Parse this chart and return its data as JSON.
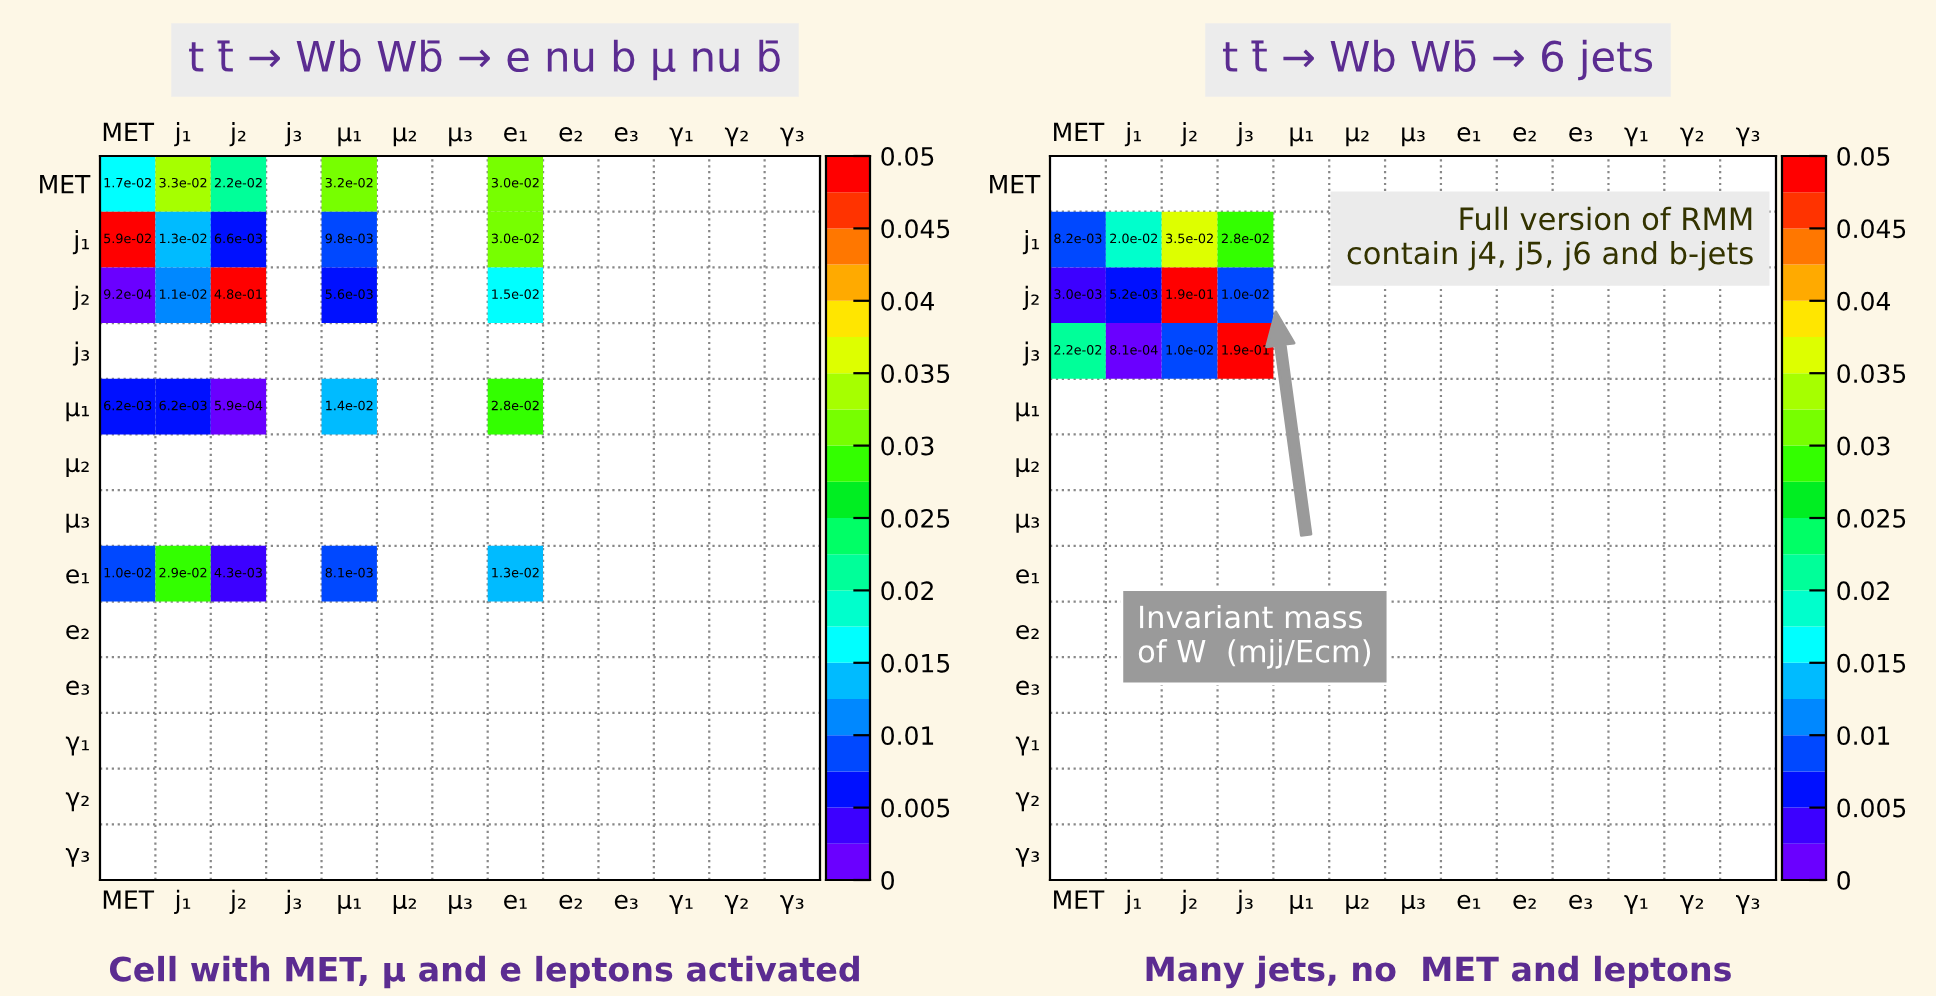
{
  "chart_data": [
    {
      "type": "heatmap",
      "title": "t t̄ → Wb Wb̄ → e nu b μ nu b̄",
      "categories": [
        "MET",
        "j₁",
        "j₂",
        "j₃",
        "μ₁",
        "μ₂",
        "μ₃",
        "e₁",
        "e₂",
        "e₃",
        "γ₁",
        "γ₂",
        "γ₃"
      ],
      "y_categories": [
        "MET",
        "j₁",
        "j₂",
        "j₃",
        "μ₁",
        "μ₂",
        "μ₃",
        "e₁",
        "e₂",
        "e₃",
        "γ₁",
        "γ₂",
        "γ₃"
      ],
      "cells": [
        [
          0.017,
          0.033,
          0.022,
          null,
          0.032,
          null,
          null,
          0.03,
          null,
          null,
          null,
          null,
          null
        ],
        [
          0.059,
          0.013,
          0.0066,
          null,
          0.0098,
          null,
          null,
          0.03,
          null,
          null,
          null,
          null,
          null
        ],
        [
          0.00092,
          0.011,
          0.48,
          null,
          0.0056,
          null,
          null,
          0.015,
          null,
          null,
          null,
          null,
          null
        ],
        [
          null,
          null,
          null,
          null,
          null,
          null,
          null,
          null,
          null,
          null,
          null,
          null,
          null
        ],
        [
          0.0062,
          0.0062,
          0.00059,
          null,
          0.014,
          null,
          null,
          0.028,
          null,
          null,
          null,
          null,
          null
        ],
        [
          null,
          null,
          null,
          null,
          null,
          null,
          null,
          null,
          null,
          null,
          null,
          null,
          null
        ],
        [
          null,
          null,
          null,
          null,
          null,
          null,
          null,
          null,
          null,
          null,
          null,
          null,
          null
        ],
        [
          0.01,
          0.029,
          0.0043,
          null,
          0.0081,
          null,
          null,
          0.013,
          null,
          null,
          null,
          null,
          null
        ],
        [
          null,
          null,
          null,
          null,
          null,
          null,
          null,
          null,
          null,
          null,
          null,
          null,
          null
        ],
        [
          null,
          null,
          null,
          null,
          null,
          null,
          null,
          null,
          null,
          null,
          null,
          null,
          null
        ],
        [
          null,
          null,
          null,
          null,
          null,
          null,
          null,
          null,
          null,
          null,
          null,
          null,
          null
        ],
        [
          null,
          null,
          null,
          null,
          null,
          null,
          null,
          null,
          null,
          null,
          null,
          null,
          null
        ],
        [
          null,
          null,
          null,
          null,
          null,
          null,
          null,
          null,
          null,
          null,
          null,
          null,
          null
        ]
      ],
      "cell_labels": [
        [
          "1.7e-02",
          "3.3e-02",
          "2.2e-02",
          null,
          "3.2e-02",
          null,
          null,
          "3.0e-02",
          null,
          null,
          null,
          null,
          null
        ],
        [
          "5.9e-02",
          "1.3e-02",
          "6.6e-03",
          null,
          "9.8e-03",
          null,
          null,
          "3.0e-02",
          null,
          null,
          null,
          null,
          null
        ],
        [
          "9.2e-04",
          "1.1e-02",
          "4.8e-01",
          null,
          "5.6e-03",
          null,
          null,
          "1.5e-02",
          null,
          null,
          null,
          null,
          null
        ],
        [
          null,
          null,
          null,
          null,
          null,
          null,
          null,
          null,
          null,
          null,
          null,
          null,
          null
        ],
        [
          "6.2e-03",
          "6.2e-03",
          "5.9e-04",
          null,
          "1.4e-02",
          null,
          null,
          "2.8e-02",
          null,
          null,
          null,
          null,
          null
        ],
        [
          null,
          null,
          null,
          null,
          null,
          null,
          null,
          null,
          null,
          null,
          null,
          null,
          null
        ],
        [
          null,
          null,
          null,
          null,
          null,
          null,
          null,
          null,
          null,
          null,
          null,
          null,
          null
        ],
        [
          "1.0e-02",
          "2.9e-02",
          "4.3e-03",
          null,
          "8.1e-03",
          null,
          null,
          "1.3e-02",
          null,
          null,
          null,
          null,
          null
        ],
        [
          null,
          null,
          null,
          null,
          null,
          null,
          null,
          null,
          null,
          null,
          null,
          null,
          null
        ],
        [
          null,
          null,
          null,
          null,
          null,
          null,
          null,
          null,
          null,
          null,
          null,
          null,
          null
        ],
        [
          null,
          null,
          null,
          null,
          null,
          null,
          null,
          null,
          null,
          null,
          null,
          null,
          null
        ],
        [
          null,
          null,
          null,
          null,
          null,
          null,
          null,
          null,
          null,
          null,
          null,
          null,
          null
        ],
        [
          null,
          null,
          null,
          null,
          null,
          null,
          null,
          null,
          null,
          null,
          null,
          null,
          null
        ]
      ],
      "clim": [
        0,
        0.05
      ],
      "cticks": [
        0,
        0.005,
        0.01,
        0.015,
        0.02,
        0.025,
        0.03,
        0.035,
        0.04,
        0.045,
        0.05
      ],
      "grid": true,
      "annotations": [
        "Cell with MET, μ and e leptons activated"
      ]
    },
    {
      "type": "heatmap",
      "title": "t t̄ → Wb Wb̄ → 6 jets",
      "categories": [
        "MET",
        "j₁",
        "j₂",
        "j₃",
        "μ₁",
        "μ₂",
        "μ₃",
        "e₁",
        "e₂",
        "e₃",
        "γ₁",
        "γ₂",
        "γ₃"
      ],
      "y_categories": [
        "MET",
        "j₁",
        "j₂",
        "j₃",
        "μ₁",
        "μ₂",
        "μ₃",
        "e₁",
        "e₂",
        "e₃",
        "γ₁",
        "γ₂",
        "γ₃"
      ],
      "cells": [
        [
          null,
          null,
          null,
          null,
          null,
          null,
          null,
          null,
          null,
          null,
          null,
          null,
          null
        ],
        [
          0.0082,
          0.02,
          0.035,
          0.028,
          null,
          null,
          null,
          null,
          null,
          null,
          null,
          null,
          null
        ],
        [
          0.003,
          0.0052,
          0.19,
          0.01,
          null,
          null,
          null,
          null,
          null,
          null,
          null,
          null,
          null
        ],
        [
          0.022,
          0.00081,
          0.01,
          0.19,
          null,
          null,
          null,
          null,
          null,
          null,
          null,
          null,
          null
        ],
        [
          null,
          null,
          null,
          null,
          null,
          null,
          null,
          null,
          null,
          null,
          null,
          null,
          null
        ],
        [
          null,
          null,
          null,
          null,
          null,
          null,
          null,
          null,
          null,
          null,
          null,
          null,
          null
        ],
        [
          null,
          null,
          null,
          null,
          null,
          null,
          null,
          null,
          null,
          null,
          null,
          null,
          null
        ],
        [
          null,
          null,
          null,
          null,
          null,
          null,
          null,
          null,
          null,
          null,
          null,
          null,
          null
        ],
        [
          null,
          null,
          null,
          null,
          null,
          null,
          null,
          null,
          null,
          null,
          null,
          null,
          null
        ],
        [
          null,
          null,
          null,
          null,
          null,
          null,
          null,
          null,
          null,
          null,
          null,
          null,
          null
        ],
        [
          null,
          null,
          null,
          null,
          null,
          null,
          null,
          null,
          null,
          null,
          null,
          null,
          null
        ],
        [
          null,
          null,
          null,
          null,
          null,
          null,
          null,
          null,
          null,
          null,
          null,
          null,
          null
        ],
        [
          null,
          null,
          null,
          null,
          null,
          null,
          null,
          null,
          null,
          null,
          null,
          null,
          null
        ]
      ],
      "cell_labels": [
        [
          null,
          null,
          null,
          null,
          null,
          null,
          null,
          null,
          null,
          null,
          null,
          null,
          null
        ],
        [
          "8.2e-03",
          "2.0e-02",
          "3.5e-02",
          "2.8e-02",
          null,
          null,
          null,
          null,
          null,
          null,
          null,
          null,
          null
        ],
        [
          "3.0e-03",
          "5.2e-03",
          "1.9e-01",
          "1.0e-02",
          null,
          null,
          null,
          null,
          null,
          null,
          null,
          null,
          null
        ],
        [
          "2.2e-02",
          "8.1e-04",
          "1.0e-02",
          "1.9e-01",
          null,
          null,
          null,
          null,
          null,
          null,
          null,
          null,
          null
        ],
        [
          null,
          null,
          null,
          null,
          null,
          null,
          null,
          null,
          null,
          null,
          null,
          null,
          null
        ],
        [
          null,
          null,
          null,
          null,
          null,
          null,
          null,
          null,
          null,
          null,
          null,
          null,
          null
        ],
        [
          null,
          null,
          null,
          null,
          null,
          null,
          null,
          null,
          null,
          null,
          null,
          null,
          null
        ],
        [
          null,
          null,
          null,
          null,
          null,
          null,
          null,
          null,
          null,
          null,
          null,
          null,
          null
        ],
        [
          null,
          null,
          null,
          null,
          null,
          null,
          null,
          null,
          null,
          null,
          null,
          null,
          null
        ],
        [
          null,
          null,
          null,
          null,
          null,
          null,
          null,
          null,
          null,
          null,
          null,
          null,
          null
        ],
        [
          null,
          null,
          null,
          null,
          null,
          null,
          null,
          null,
          null,
          null,
          null,
          null,
          null
        ],
        [
          null,
          null,
          null,
          null,
          null,
          null,
          null,
          null,
          null,
          null,
          null,
          null,
          null
        ],
        [
          null,
          null,
          null,
          null,
          null,
          null,
          null,
          null,
          null,
          null,
          null,
          null,
          null
        ]
      ],
      "clim": [
        0,
        0.05
      ],
      "cticks": [
        0,
        0.005,
        0.01,
        0.015,
        0.02,
        0.025,
        0.03,
        0.035,
        0.04,
        0.045,
        0.05
      ],
      "grid": true,
      "annotations": [
        "Full version of RMM\ncontain j4, j5, j6 and b-jets",
        "Invariant mass\nof W  (mjj/Ecm)",
        "Many jets, no  MET and leptons"
      ]
    }
  ]
}
